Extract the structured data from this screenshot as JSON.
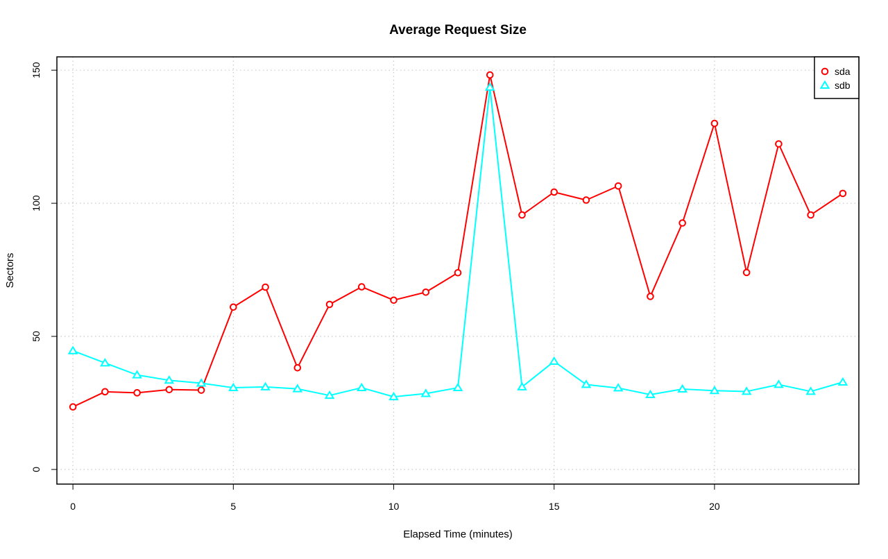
{
  "chart_data": {
    "type": "line",
    "title": "Average Request Size",
    "xlabel": "Elapsed Time (minutes)",
    "ylabel": "Sectors",
    "xlim": [
      -0.5,
      24.5
    ],
    "ylim": [
      -5.5,
      155
    ],
    "x_ticks": [
      0,
      5,
      10,
      15,
      20
    ],
    "y_ticks": [
      0,
      50,
      100,
      150
    ],
    "grid": true,
    "legend_position": "top-right",
    "x": [
      0,
      1,
      2,
      3,
      4,
      5,
      6,
      7,
      8,
      9,
      10,
      11,
      12,
      13,
      14,
      15,
      16,
      17,
      18,
      19,
      20,
      21,
      22,
      23,
      24
    ],
    "series": [
      {
        "name": "sda",
        "color": "#ff0000",
        "marker": "circle",
        "values": [
          23.5,
          29.2,
          28.8,
          30.0,
          29.8,
          61.0,
          68.5,
          38.2,
          62.0,
          68.6,
          63.6,
          66.6,
          73.9,
          148.2,
          95.6,
          104.2,
          101.2,
          106.5,
          65.0,
          92.6,
          130.0,
          74.0,
          122.3,
          95.6,
          103.7
        ]
      },
      {
        "name": "sdb",
        "color": "#00ffff",
        "marker": "triangle",
        "values": [
          44.6,
          40.0,
          35.5,
          33.5,
          32.4,
          30.7,
          31.0,
          30.3,
          27.8,
          30.7,
          27.3,
          28.5,
          30.7,
          143.6,
          31.0,
          40.6,
          31.9,
          30.6,
          28.1,
          30.2,
          29.6,
          29.3,
          31.9,
          29.3,
          32.8
        ]
      }
    ]
  }
}
